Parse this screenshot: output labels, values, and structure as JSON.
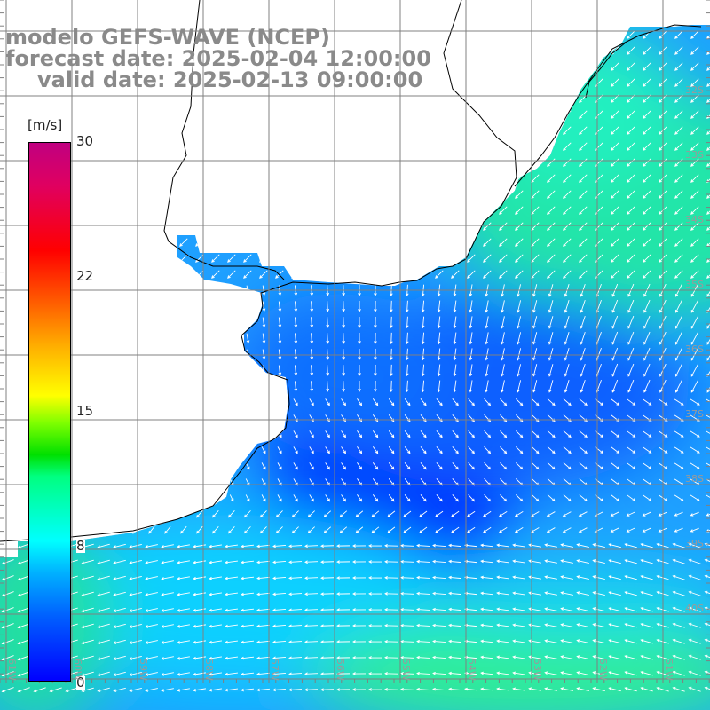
{
  "title": {
    "line1": "modelo GEFS-WAVE (NCEP)",
    "line2": "forecast date: 2025-02-04 12:00:00",
    "line3": "valid date: 2025-02-13 09:00:00"
  },
  "colorbar": {
    "unit": "[m/s]",
    "ticks": [
      "30",
      "22",
      "15",
      "8",
      "0"
    ],
    "min": 0,
    "max": 30,
    "colors": [
      "#0000ff",
      "#00b0ff",
      "#00ffff",
      "#00e000",
      "#ffff00",
      "#ff6000",
      "#ff0000",
      "#c00080"
    ]
  },
  "map": {
    "region": "Rio de la Plata / South Atlantic coast",
    "grid_color": "#808080",
    "land_color": "#ffffff",
    "coast_color": "#000000",
    "arrow_color": "#ffffff",
    "lat_labels": [
      "32S",
      "33S",
      "34S",
      "35S",
      "36S",
      "37S",
      "38S",
      "39S",
      "40S"
    ],
    "lon_labels": [
      "61W",
      "60W",
      "59W",
      "58W",
      "57W",
      "56W",
      "55W",
      "54W",
      "53W",
      "52W",
      "51W"
    ]
  }
}
